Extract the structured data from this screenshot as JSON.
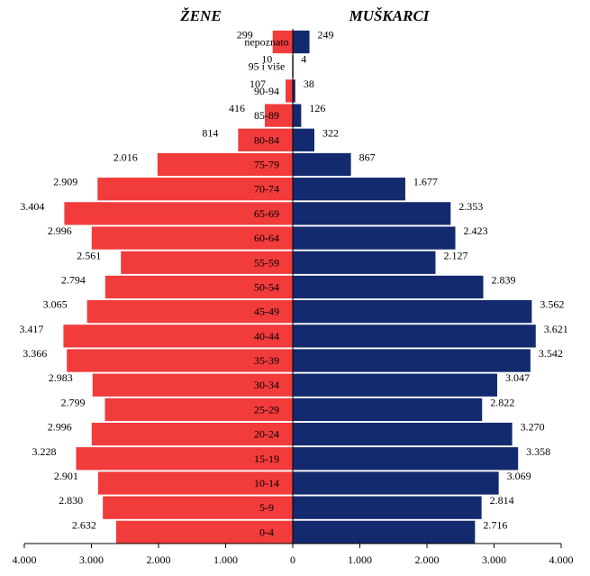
{
  "chart_data": {
    "type": "bar",
    "orientation": "horizontal",
    "subtype": "population-pyramid",
    "headers": {
      "left": "ŽENE",
      "right": "MUŠKARCI"
    },
    "categories": [
      "0-4",
      "5-9",
      "10-14",
      "15-19",
      "20-24",
      "25-29",
      "30-34",
      "35-39",
      "40-44",
      "45-49",
      "50-54",
      "55-59",
      "60-64",
      "65-69",
      "70-74",
      "75-79",
      "80-84",
      "85-89",
      "90-94",
      "95 i više",
      "nepoznato"
    ],
    "series": [
      {
        "name": "ŽENE",
        "color": "#f23b3b",
        "values": [
          2632,
          2830,
          2901,
          3228,
          2996,
          2799,
          2983,
          3366,
          3417,
          3065,
          2794,
          2561,
          2996,
          3404,
          2909,
          2016,
          814,
          416,
          107,
          10,
          299
        ],
        "labels": [
          "2.632",
          "2.830",
          "2.901",
          "3.228",
          "2.996",
          "2.799",
          "2.983",
          "3.366",
          "3.417",
          "3.065",
          "2.794",
          "2.561",
          "2.996",
          "3.404",
          "2.909",
          "2.016",
          "814",
          "416",
          "107",
          "10",
          "299"
        ]
      },
      {
        "name": "MUŠKARCI",
        "color": "#132a6e",
        "values": [
          2716,
          2814,
          3069,
          3358,
          3270,
          2822,
          3047,
          3542,
          3621,
          3562,
          2839,
          2127,
          2423,
          2353,
          1677,
          867,
          322,
          126,
          38,
          4,
          249
        ],
        "labels": [
          "2.716",
          "2.814",
          "3.069",
          "3.358",
          "3.270",
          "2.822",
          "3.047",
          "3.542",
          "3.621",
          "3.562",
          "2.839",
          "2.127",
          "2.423",
          "2.353",
          "1.677",
          "867",
          "322",
          "126",
          "38",
          "4",
          "249"
        ]
      }
    ],
    "xaxis": {
      "range": [
        -4000,
        4000
      ],
      "ticks": [
        -4000,
        -3000,
        -2000,
        -1000,
        0,
        1000,
        2000,
        3000,
        4000
      ],
      "tick_labels": [
        "4.000",
        "3.000",
        "2.000",
        "1.000",
        "0",
        "1.000",
        "2.000",
        "3.000",
        "4.000"
      ]
    },
    "grid": false,
    "legend": "none"
  }
}
